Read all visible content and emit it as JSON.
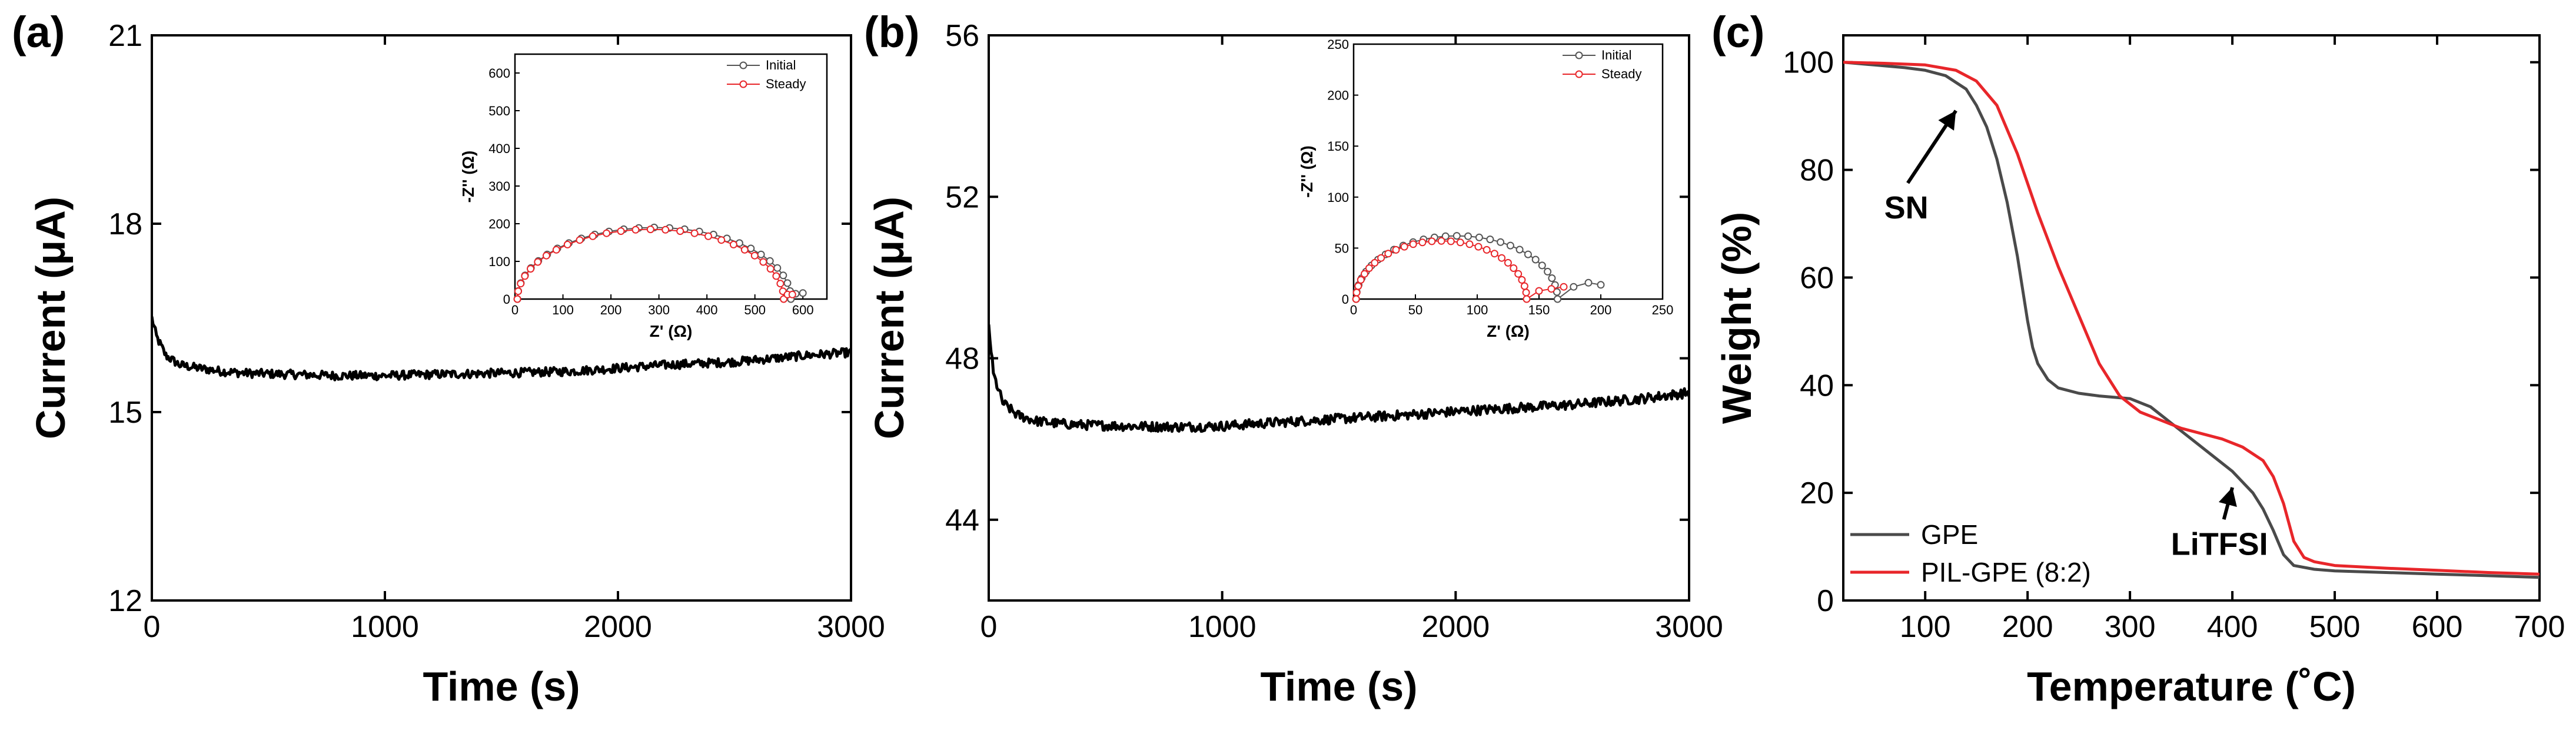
{
  "chart_data": [
    {
      "type": "line",
      "panel_label": "(a)",
      "xlabel": "Time (s)",
      "ylabel": "Current (μA)",
      "xlim": [
        0,
        3000
      ],
      "ylim": [
        12,
        21
      ],
      "x_ticks": [
        0,
        1000,
        2000,
        3000
      ],
      "y_ticks": [
        12,
        15,
        18,
        21
      ],
      "series": [
        {
          "name": "Current",
          "color": "#000000",
          "x": [
            0,
            20,
            60,
            120,
            200,
            300,
            400,
            600,
            800,
            1000,
            1200,
            1500,
            1800,
            2000,
            2200,
            2500,
            2800,
            3000
          ],
          "y": [
            16.5,
            16.2,
            15.9,
            15.75,
            15.7,
            15.65,
            15.62,
            15.6,
            15.58,
            15.58,
            15.6,
            15.62,
            15.65,
            15.7,
            15.75,
            15.8,
            15.9,
            15.95
          ]
        }
      ],
      "inset": {
        "type": "scatter",
        "xlabel": "Z' (Ω)",
        "ylabel": "-Z'' (Ω)",
        "xlim": [
          0,
          650
        ],
        "ylim": [
          0,
          650
        ],
        "x_ticks": [
          0,
          100,
          200,
          300,
          400,
          500,
          600
        ],
        "y_ticks": [
          0,
          100,
          200,
          300,
          400,
          500,
          600
        ],
        "series": [
          {
            "name": "Initial",
            "color": "#555555",
            "arc": [
              5,
              575,
              190
            ],
            "tail": [
              [
                585,
                14
              ],
              [
                600,
                16
              ]
            ]
          },
          {
            "name": "Steady",
            "color": "#e8262a",
            "arc": [
              5,
              560,
              185
            ],
            "tail": [
              [
                568,
                12
              ],
              [
                578,
                12
              ]
            ]
          }
        ]
      }
    },
    {
      "type": "line",
      "panel_label": "(b)",
      "xlabel": "Time (s)",
      "ylabel": "Current (μA)",
      "xlim": [
        0,
        3000
      ],
      "ylim": [
        42,
        56
      ],
      "x_ticks": [
        0,
        1000,
        2000,
        3000
      ],
      "y_ticks": [
        44,
        48,
        52,
        56
      ],
      "series": [
        {
          "name": "Current",
          "color": "#000000",
          "x": [
            0,
            20,
            60,
            120,
            200,
            300,
            400,
            600,
            800,
            1000,
            1200,
            1500,
            1800,
            2000,
            2200,
            2500,
            2800,
            3000
          ],
          "y": [
            48.8,
            47.6,
            46.9,
            46.6,
            46.45,
            46.38,
            46.35,
            46.32,
            46.3,
            46.32,
            46.4,
            46.5,
            46.6,
            46.68,
            46.75,
            46.85,
            47.0,
            47.15
          ]
        }
      ],
      "inset": {
        "type": "scatter",
        "xlabel": "Z' (Ω)",
        "ylabel": "-Z'' (Ω)",
        "xlim": [
          0,
          250
        ],
        "ylim": [
          0,
          250
        ],
        "x_ticks": [
          0,
          50,
          100,
          150,
          200,
          250
        ],
        "y_ticks": [
          0,
          50,
          100,
          150,
          200,
          250
        ],
        "series": [
          {
            "name": "Initial",
            "color": "#555555",
            "arc": [
              2,
              165,
              62
            ],
            "tail": [
              [
                178,
                12
              ],
              [
                190,
                16
              ],
              [
                200,
                14
              ]
            ]
          },
          {
            "name": "Steady",
            "color": "#e8262a",
            "arc": [
              2,
              140,
              57
            ],
            "tail": [
              [
                150,
                8
              ],
              [
                160,
                10
              ],
              [
                170,
                12
              ]
            ]
          }
        ]
      }
    },
    {
      "type": "line",
      "panel_label": "(c)",
      "xlabel": "Temperature (˚C)",
      "ylabel": "Weight (%)",
      "xlim": [
        20,
        700
      ],
      "ylim": [
        0,
        105
      ],
      "x_ticks": [
        100,
        200,
        300,
        400,
        500,
        600,
        700
      ],
      "y_ticks": [
        0,
        20,
        40,
        60,
        80,
        100
      ],
      "legend_position": "bottom-left",
      "series": [
        {
          "name": "GPE",
          "color": "#4a4a4a",
          "x": [
            20,
            50,
            80,
            100,
            120,
            140,
            150,
            160,
            170,
            180,
            190,
            200,
            205,
            210,
            220,
            230,
            250,
            270,
            300,
            320,
            340,
            360,
            380,
            400,
            420,
            430,
            440,
            450,
            460,
            480,
            500,
            550,
            600,
            650,
            700
          ],
          "y": [
            100,
            99.5,
            99,
            98.5,
            97.5,
            95,
            92,
            88,
            82,
            74,
            64,
            52,
            47,
            44,
            41,
            39.5,
            38.5,
            38,
            37.5,
            36,
            33,
            30,
            27,
            24,
            20,
            17,
            13,
            8.5,
            6.5,
            5.8,
            5.5,
            5.2,
            4.9,
            4.6,
            4.3
          ]
        },
        {
          "name": "PIL-GPE (8:2)",
          "color": "#e8262a",
          "x": [
            20,
            60,
            100,
            130,
            150,
            170,
            190,
            210,
            230,
            250,
            270,
            290,
            310,
            330,
            350,
            370,
            390,
            410,
            430,
            440,
            450,
            460,
            470,
            480,
            500,
            550,
            600,
            650,
            700
          ],
          "y": [
            100,
            99.8,
            99.5,
            98.5,
            96.5,
            92,
            83,
            72,
            62,
            53,
            44,
            38,
            35,
            33.5,
            32,
            31,
            30,
            28.5,
            26,
            23,
            18,
            11,
            8,
            7.2,
            6.5,
            6,
            5.6,
            5.2,
            4.9
          ]
        }
      ],
      "annotations": [
        {
          "text": "SN",
          "x": 60,
          "y": 71,
          "arrow_to": [
            130,
            91
          ]
        },
        {
          "text": "LiTFSI",
          "x": 340,
          "y": 8.5,
          "arrow_to": [
            400,
            21
          ]
        }
      ]
    }
  ]
}
